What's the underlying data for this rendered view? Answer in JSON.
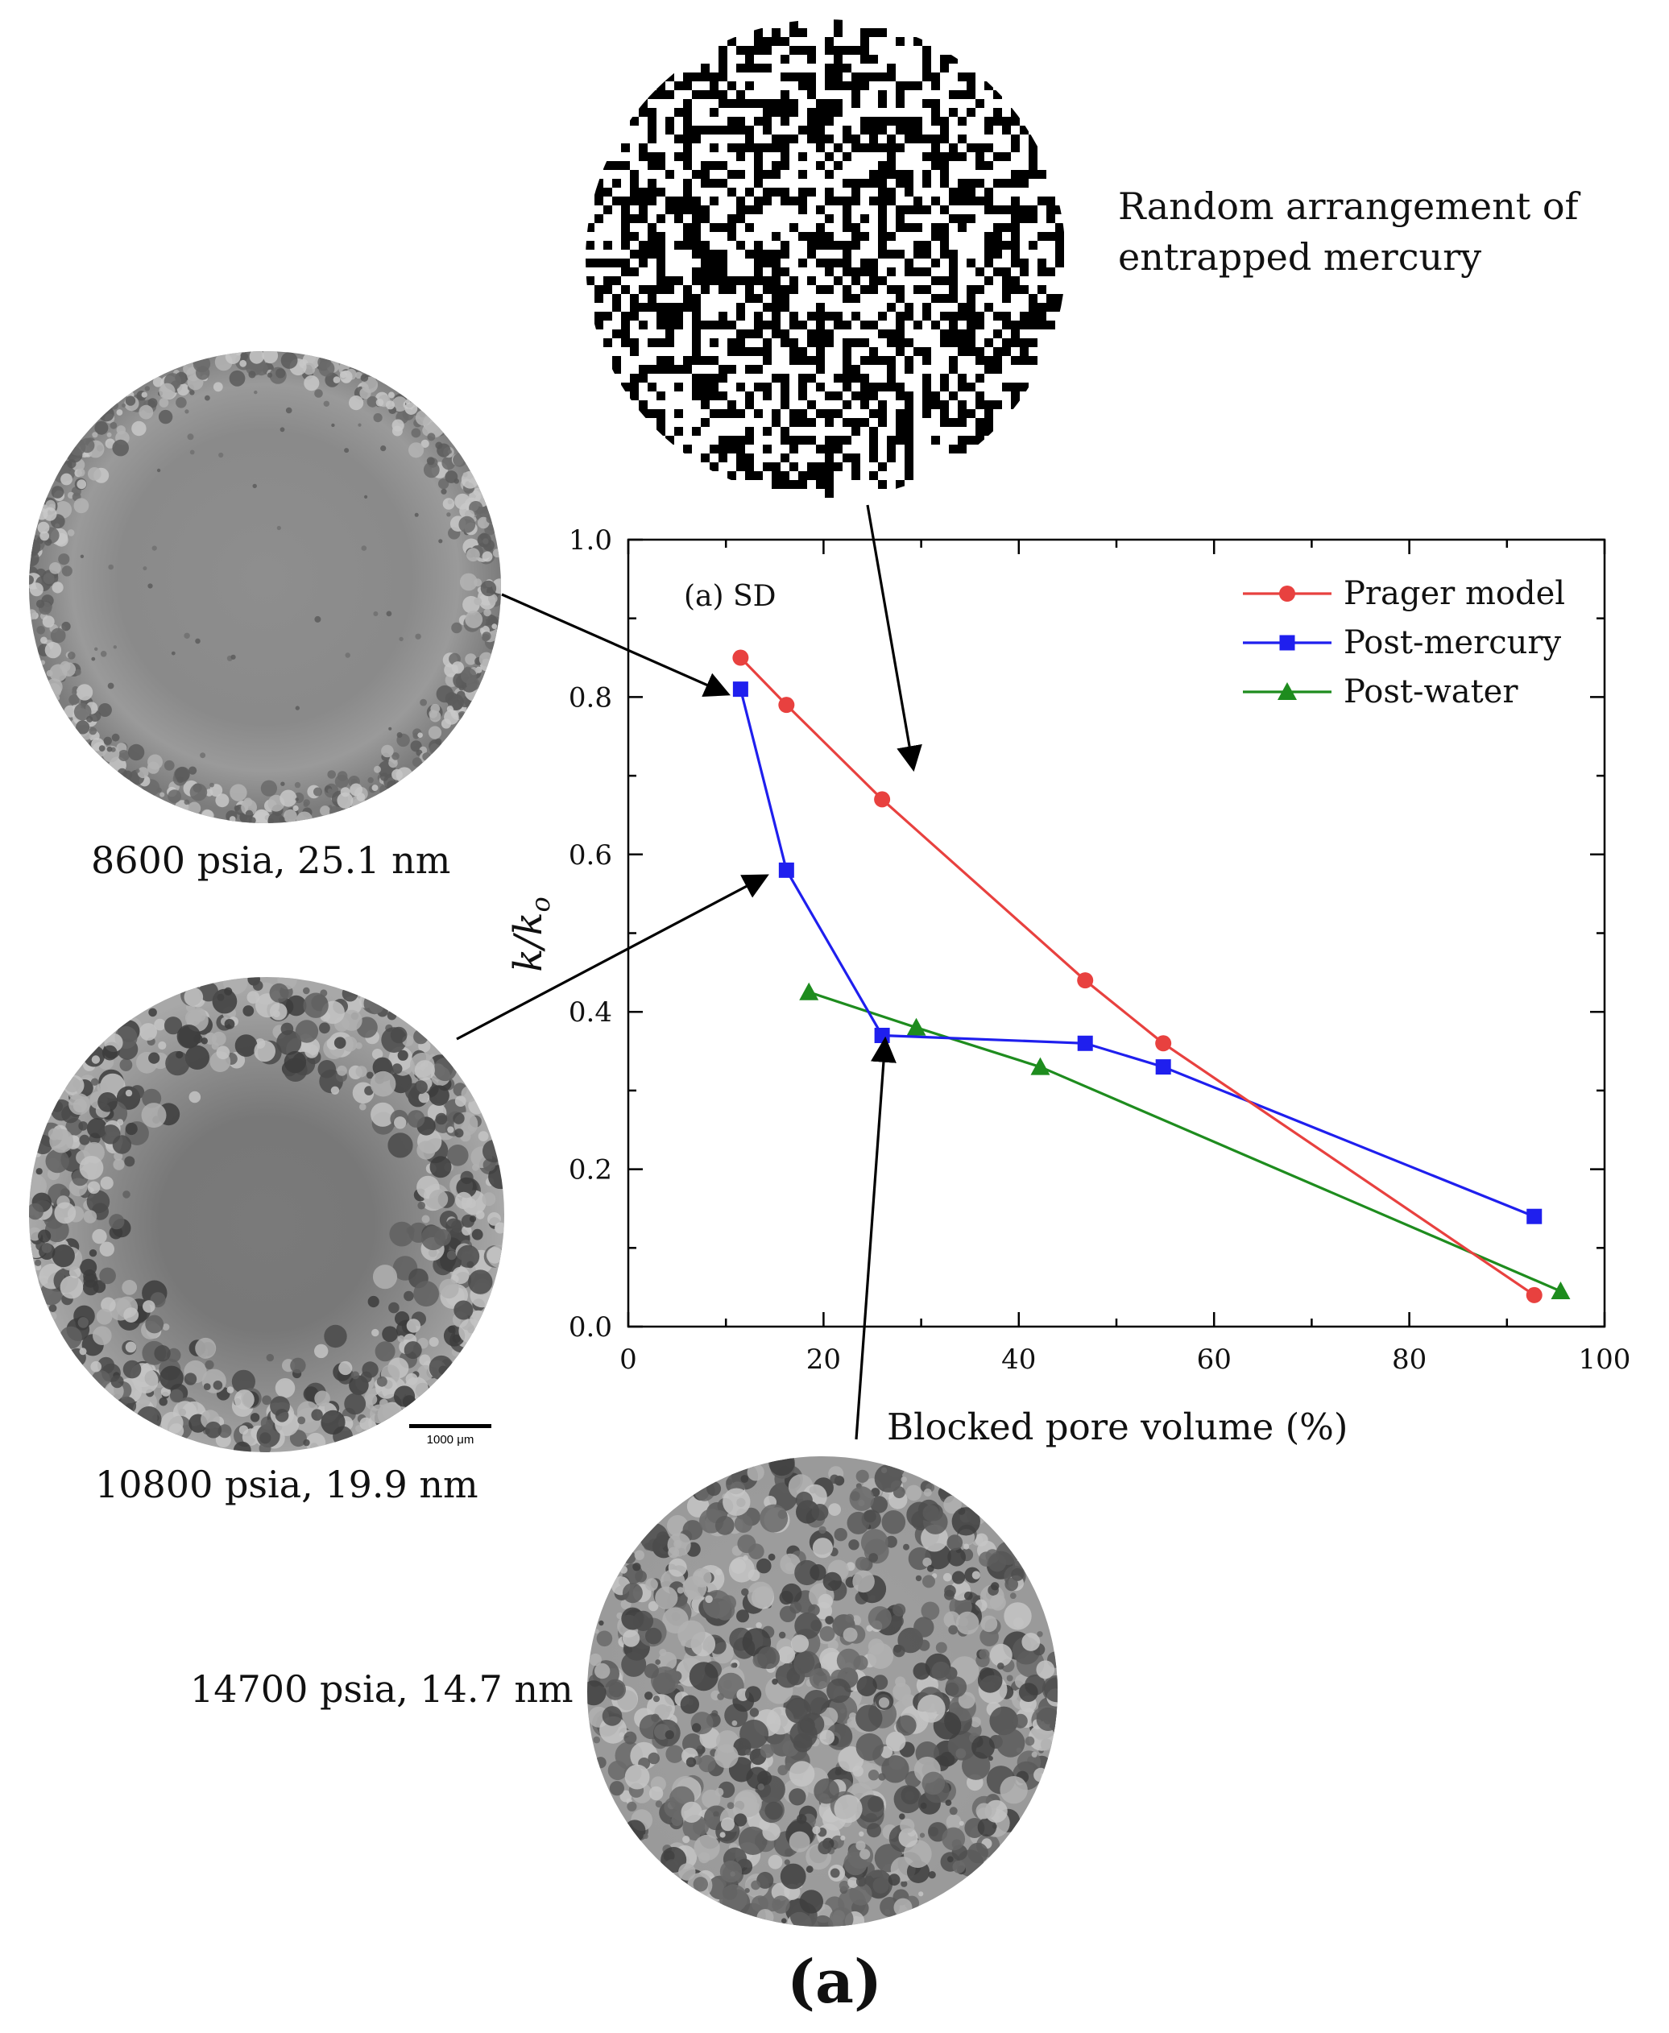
{
  "chart_data": {
    "type": "line",
    "panel_label": "(a) SD",
    "xlabel": "Blocked pore volume (%)",
    "ylabel": "k/ko",
    "xlim": [
      0,
      100
    ],
    "ylim": [
      0,
      1.0
    ],
    "x_ticks": [
      "0",
      "20",
      "40",
      "60",
      "80",
      "100"
    ],
    "y_ticks": [
      "0.0",
      "0.2",
      "0.4",
      "0.6",
      "0.8",
      "1.0"
    ],
    "grid": false,
    "legend_position": "top-right",
    "series": [
      {
        "name": "Prager model",
        "color": "#e8413f",
        "marker": "circle",
        "x": [
          11.5,
          16.2,
          26.0,
          46.8,
          54.8,
          92.8
        ],
        "y": [
          0.85,
          0.79,
          0.67,
          0.44,
          0.36,
          0.04
        ]
      },
      {
        "name": "Post-mercury",
        "color": "#1f1fee",
        "marker": "square",
        "x": [
          11.5,
          16.2,
          26.0,
          46.8,
          54.8,
          92.8
        ],
        "y": [
          0.81,
          0.58,
          0.37,
          0.36,
          0.33,
          0.14
        ]
      },
      {
        "name": "Post-water",
        "color": "#1e8c1e",
        "marker": "triangle",
        "x": [
          18.5,
          29.5,
          42.2,
          95.5
        ],
        "y": [
          0.425,
          0.38,
          0.33,
          0.045
        ]
      }
    ]
  },
  "annotations": {
    "random_caption_line1": "Random arrangement of",
    "random_caption_line2": "entrapped mercury",
    "img1_caption": "8600 psia, 25.1 nm",
    "img2_caption": "10800 psia, 19.9 nm",
    "img3_caption": "14700 psia, 14.7 nm",
    "scale_bar_label": "1000 μm",
    "figure_label": "(a)"
  },
  "colors": {
    "prager": "#e8413f",
    "post_mercury": "#1f1fee",
    "post_water": "#1e8c1e"
  }
}
